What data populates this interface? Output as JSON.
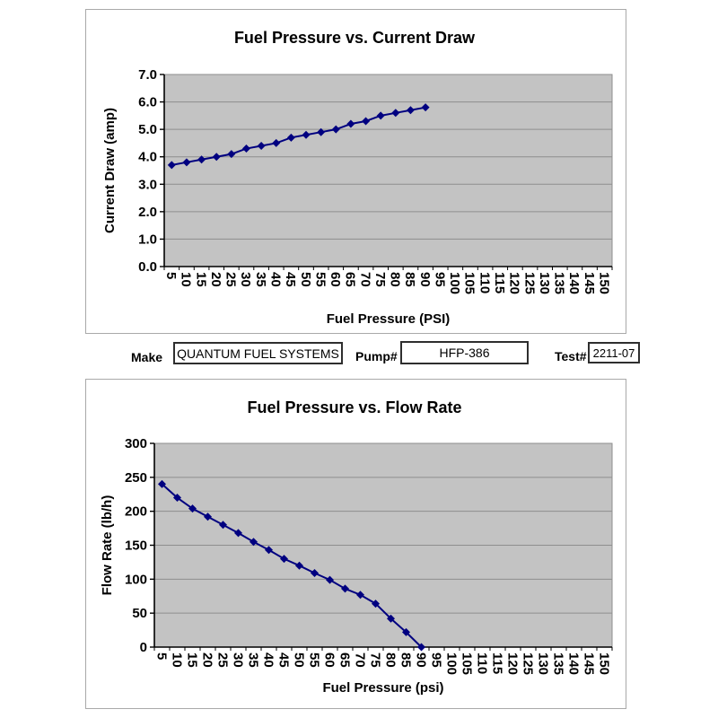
{
  "form": {
    "make_label": "Make",
    "make_value": "QUANTUM FUEL SYSTEMS",
    "pump_label": "Pump#",
    "pump_value": "HFP-386",
    "test_label": "Test#",
    "test_value": "2211-07"
  },
  "colors": {
    "series_navy": "#000080",
    "plot_background": "#c3c3c3",
    "gridline_gray": "#8e8e8e",
    "axis_black": "#000000",
    "panel_border": "#a9a9a9"
  },
  "chart_data": [
    {
      "type": "line",
      "title": "Fuel Pressure vs. Current Draw",
      "xlabel": "Fuel Pressure (PSI)",
      "ylabel": "Current Draw (amp)",
      "categories": [
        5,
        10,
        15,
        20,
        25,
        30,
        35,
        40,
        45,
        50,
        55,
        60,
        65,
        70,
        75,
        80,
        85,
        90,
        95,
        100,
        105,
        110,
        115,
        120,
        125,
        130,
        135,
        140,
        145,
        150
      ],
      "series": [
        {
          "name": "Current Draw",
          "color": "#000080",
          "values": [
            3.7,
            3.8,
            3.9,
            4.0,
            4.1,
            4.3,
            4.4,
            4.5,
            4.7,
            4.8,
            4.9,
            5.0,
            5.2,
            5.3,
            5.5,
            5.6,
            5.7,
            5.8
          ]
        }
      ],
      "ylim": [
        0,
        7
      ],
      "ytick_step": 1,
      "ytick_decimals": 1,
      "grid": true,
      "legend": "none",
      "plot_bg": "#c3c3c3",
      "grid_color": "#8e8e8e"
    },
    {
      "type": "line",
      "title": "Fuel Pressure vs. Flow Rate",
      "xlabel": "Fuel Pressure (psi)",
      "ylabel": "Flow Rate (lb/h)",
      "categories": [
        5,
        10,
        15,
        20,
        25,
        30,
        35,
        40,
        45,
        50,
        55,
        60,
        65,
        70,
        75,
        80,
        85,
        90,
        95,
        100,
        105,
        110,
        115,
        120,
        125,
        130,
        135,
        140,
        145,
        150
      ],
      "series": [
        {
          "name": "Flow Rate",
          "color": "#000080",
          "values": [
            240,
            220,
            204,
            192,
            180,
            168,
            155,
            143,
            130,
            120,
            109,
            99,
            86,
            77,
            64,
            42,
            22,
            0
          ]
        }
      ],
      "ylim": [
        0,
        300
      ],
      "ytick_step": 50,
      "ytick_decimals": 0,
      "grid": true,
      "legend": "none",
      "plot_bg": "#c3c3c3",
      "grid_color": "#8e8e8e"
    }
  ]
}
